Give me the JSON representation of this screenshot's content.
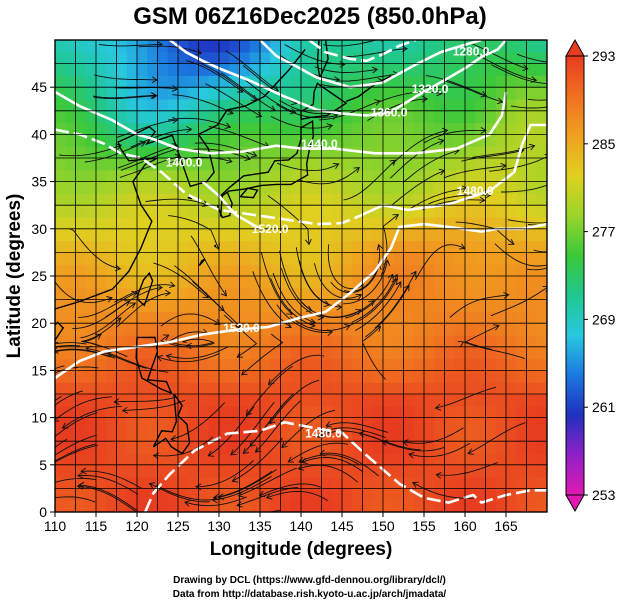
{
  "chart_data": {
    "type": "heatmap",
    "title": "GSM 06Z16Dec2025 (850.0hPa)",
    "xlabel": "Longitude (degrees)",
    "ylabel": "Latitude  (degrees)",
    "xlim": [
      110,
      170
    ],
    "ylim": [
      0,
      50
    ],
    "xticks": [
      "110",
      "115",
      "120",
      "125",
      "130",
      "135",
      "140",
      "145",
      "150",
      "155",
      "160",
      "165"
    ],
    "yticks": [
      "0",
      "5",
      "10",
      "15",
      "20",
      "25",
      "30",
      "35",
      "40",
      "45"
    ],
    "colorbar": {
      "ticks": [
        "253",
        "261",
        "269",
        "277",
        "285",
        "293"
      ],
      "range": [
        253,
        293
      ],
      "colors": [
        "#e01ab0",
        "#9020c8",
        "#2030c0",
        "#1c78e0",
        "#28c8e0",
        "#20c890",
        "#3ac83a",
        "#9ad42a",
        "#e0d020",
        "#f0a020",
        "#f07020",
        "#e83c20"
      ]
    },
    "grid": true,
    "contour_labels": [
      "1520.0",
      "1520.0",
      "1480.0",
      "1360.0",
      "1320.0",
      "1280.0",
      "1400.0",
      "1440.0",
      "1480.0"
    ],
    "notes": {
      "series": "temperature shading, geopotential height contours, wind streamlines"
    }
  },
  "credits": {
    "line1": "Drawing by DCL (https://www.gfd-dennou.org/library/dcl/)",
    "line2": "Data from http://database.rish.kyoto-u.ac.jp/arch/jmadata/"
  },
  "colors": {
    "contour": "#ffffff",
    "coast": "#000000"
  }
}
